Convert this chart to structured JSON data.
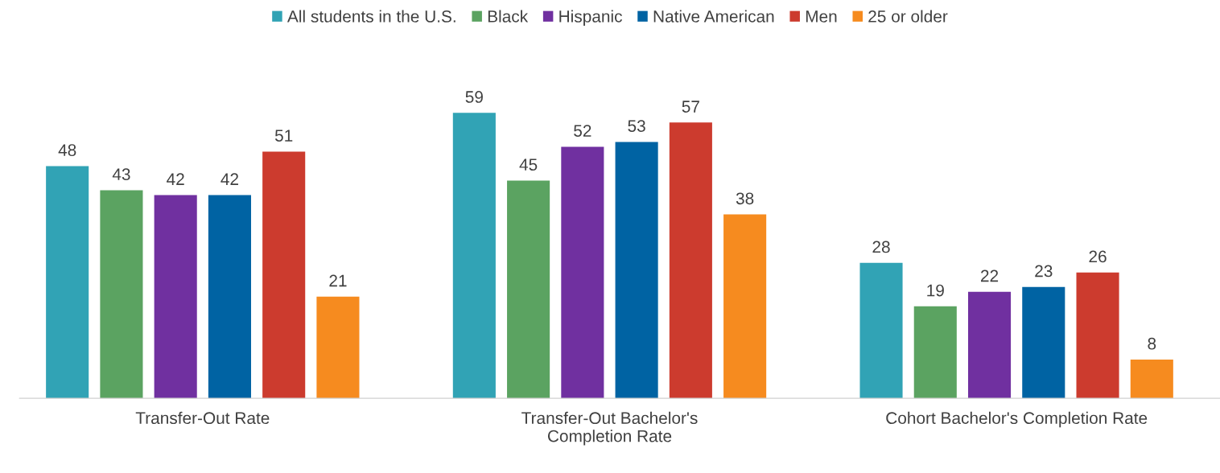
{
  "chart_data": {
    "type": "bar",
    "categories": [
      "Transfer-Out Rate",
      "Transfer-Out Bachelor's\nCompletion Rate",
      "Cohort Bachelor's Completion Rate"
    ],
    "series": [
      {
        "name": "All students in the U.S.",
        "color": "#31a3b5",
        "values": [
          48,
          59,
          28
        ]
      },
      {
        "name": "Black",
        "color": "#5ba361",
        "values": [
          43,
          45,
          19
        ]
      },
      {
        "name": "Hispanic",
        "color": "#7030a0",
        "values": [
          42,
          52,
          22
        ]
      },
      {
        "name": "Native American",
        "color": "#0063a3",
        "values": [
          42,
          53,
          23
        ]
      },
      {
        "name": "Men",
        "color": "#cc3b2e",
        "values": [
          51,
          57,
          26
        ]
      },
      {
        "name": "25 or older",
        "color": "#f68b1f",
        "values": [
          21,
          38,
          8
        ]
      }
    ],
    "data_labels": true,
    "legend": "top",
    "grid": false,
    "tick_labels": "x"
  }
}
